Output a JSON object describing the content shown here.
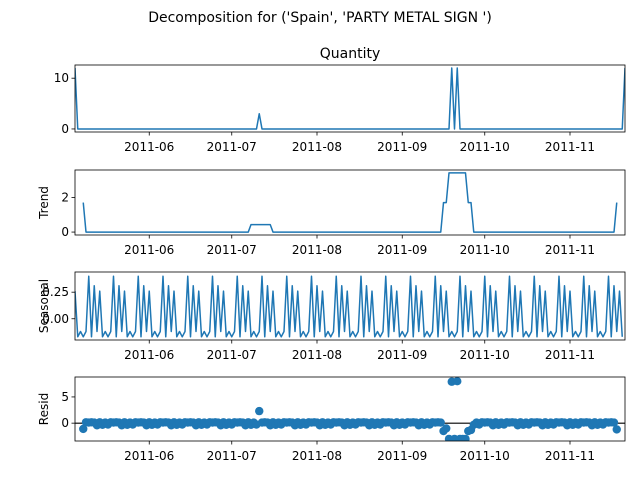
{
  "figure": {
    "title": "Decomposition for ('Spain', 'PARTY METAL SIGN ')",
    "series_color": "#1f77b4"
  },
  "chart_data": [
    {
      "type": "line",
      "title": "Quantity",
      "ylabel": "",
      "xlim": [
        "2011-05-05",
        "2011-11-21"
      ],
      "ylim": [
        -0.6,
        12.6
      ],
      "yticks": [
        0,
        10
      ],
      "xticks": [
        "2011-06",
        "2011-07",
        "2011-08",
        "2011-09",
        "2011-10",
        "2011-11"
      ],
      "points": [
        [
          "2011-05-05",
          12
        ],
        [
          "2011-05-06",
          0
        ],
        [
          "2011-07-10",
          0
        ],
        [
          "2011-07-11",
          3
        ],
        [
          "2011-07-12",
          0
        ],
        [
          "2011-09-18",
          0
        ],
        [
          "2011-09-19",
          12
        ],
        [
          "2011-09-20",
          0
        ],
        [
          "2011-09-21",
          12
        ],
        [
          "2011-09-22",
          0
        ],
        [
          "2011-11-20",
          0
        ],
        [
          "2011-11-21",
          12
        ]
      ]
    },
    {
      "type": "line",
      "title": "",
      "ylabel": "Trend",
      "xlim": [
        "2011-05-05",
        "2011-11-21"
      ],
      "ylim": [
        -0.17,
        3.6
      ],
      "yticks": [
        0,
        2
      ],
      "xticks": [
        "2011-06",
        "2011-07",
        "2011-08",
        "2011-09",
        "2011-10",
        "2011-11"
      ],
      "points": [
        [
          "2011-05-08",
          1.71
        ],
        [
          "2011-05-09",
          0
        ],
        [
          "2011-07-07",
          0
        ],
        [
          "2011-07-08",
          0.43
        ],
        [
          "2011-07-15",
          0.43
        ],
        [
          "2011-07-16",
          0
        ],
        [
          "2011-09-15",
          0
        ],
        [
          "2011-09-16",
          1.71
        ],
        [
          "2011-09-17",
          1.71
        ],
        [
          "2011-09-18",
          3.43
        ],
        [
          "2011-09-24",
          3.43
        ],
        [
          "2011-09-25",
          1.71
        ],
        [
          "2011-09-26",
          1.71
        ],
        [
          "2011-09-27",
          0
        ],
        [
          "2011-11-17",
          0
        ],
        [
          "2011-11-18",
          1.71
        ]
      ]
    },
    {
      "type": "line",
      "title": "",
      "ylabel": "Seasonal",
      "xlim": [
        "2011-05-05",
        "2011-11-21"
      ],
      "ylim": [
        -0.2,
        0.44
      ],
      "yticks": [
        0.25,
        0.0
      ],
      "ytick_labels": [
        "0.25",
        "0.00"
      ],
      "xticks": [
        "2011-06",
        "2011-07",
        "2011-08",
        "2011-09",
        "2011-10",
        "2011-11"
      ],
      "start": "2011-05-05",
      "days": 200,
      "period_pattern": [
        0.26,
        -0.17,
        -0.12,
        -0.17,
        -0.12,
        0.4,
        -0.17,
        0.31,
        -0.12
      ]
    },
    {
      "type": "scatter",
      "title": "",
      "ylabel": "Resid",
      "xlim": [
        "2011-05-05",
        "2011-11-21"
      ],
      "ylim": [
        -3.4,
        8.8
      ],
      "yticks": [
        0,
        5
      ],
      "xticks": [
        "2011-06",
        "2011-07",
        "2011-08",
        "2011-09",
        "2011-10",
        "2011-11"
      ],
      "start": "2011-05-08",
      "end": "2011-11-18",
      "baseline_pattern": [
        -0.26,
        0.17,
        0.12,
        0.17,
        0.12,
        -0.4,
        0.17,
        -0.31,
        0.12
      ],
      "special_points": [
        [
          "2011-05-08",
          -1.1
        ],
        [
          "2011-07-11",
          2.3
        ],
        [
          "2011-09-16",
          -1.5
        ],
        [
          "2011-09-17",
          -1.0
        ],
        [
          "2011-09-18",
          -3.0
        ],
        [
          "2011-09-19",
          7.9
        ],
        [
          "2011-09-20",
          -3.0
        ],
        [
          "2011-09-21",
          8.0
        ],
        [
          "2011-09-22",
          -3.0
        ],
        [
          "2011-09-23",
          -3.0
        ],
        [
          "2011-09-24",
          -3.0
        ],
        [
          "2011-09-25",
          -1.5
        ],
        [
          "2011-09-26",
          -1.3
        ],
        [
          "2011-11-18",
          -1.2
        ]
      ]
    }
  ]
}
